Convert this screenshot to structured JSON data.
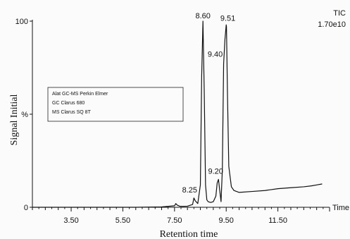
{
  "chart_data": {
    "type": "line",
    "title": "",
    "xlabel": "Retention time",
    "ylabel": "Signal Initial",
    "xlim": [
      2.0,
      13.5
    ],
    "ylim": [
      0,
      100
    ],
    "x_tick_labels": [
      "3.50",
      "5.50",
      "7.50",
      "9.50",
      "11.50"
    ],
    "x_axis_end_label": "Time",
    "y_tick_labels": [
      "100",
      "%",
      "0"
    ],
    "info_top_right": [
      "TIC",
      "1.70e10"
    ],
    "instrument_notes": [
      "Alat GC-MS Perkin Elmer",
      "GC Clarus 680",
      "MS Clarus SQ 8T"
    ],
    "series": [
      {
        "x": [
          2.0,
          3.0,
          4.0,
          5.0,
          6.0,
          7.0,
          7.5,
          7.55,
          7.6,
          7.7,
          7.8,
          8.0,
          8.2,
          8.25,
          8.3,
          8.4,
          8.5,
          8.55,
          8.6,
          8.65,
          8.7,
          8.75,
          8.8,
          8.9,
          9.0,
          9.1,
          9.15,
          9.2,
          9.25,
          9.3,
          9.35,
          9.4,
          9.45,
          9.5,
          9.51,
          9.55,
          9.6,
          9.7,
          9.8,
          10.0,
          10.5,
          11.0,
          11.5,
          12.0,
          12.5,
          12.8,
          13.0,
          13.2
        ],
        "values": [
          0,
          0,
          0,
          0,
          0,
          0.2,
          0.8,
          2.0,
          1.2,
          0.6,
          0.5,
          0.6,
          1.5,
          5.0,
          3.5,
          2.0,
          12.0,
          70.0,
          100.0,
          62.0,
          12.0,
          4.0,
          3.0,
          2.6,
          3.0,
          6.0,
          13.0,
          15.0,
          9.0,
          3.0,
          20.0,
          77.0,
          90.0,
          98.0,
          97.0,
          60.0,
          22.0,
          11.0,
          9.0,
          8.0,
          8.5,
          9.0,
          10.0,
          10.5,
          11.0,
          11.5,
          12.0,
          12.5
        ]
      }
    ],
    "peak_labels": [
      {
        "x": 8.25,
        "y": 5.0,
        "label": "8.25"
      },
      {
        "x": 8.6,
        "y": 100.0,
        "label": "8.60"
      },
      {
        "x": 9.2,
        "y": 15.0,
        "label": "9.20"
      },
      {
        "x": 9.4,
        "y": 77.0,
        "label": "9.40"
      },
      {
        "x": 9.51,
        "y": 98.0,
        "label": "9.51"
      }
    ],
    "grid": false,
    "legend": "none"
  }
}
